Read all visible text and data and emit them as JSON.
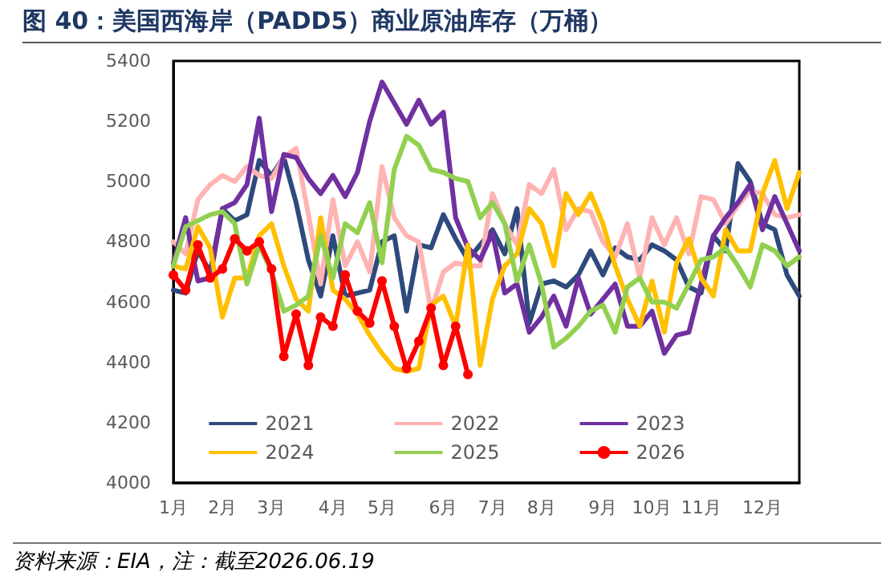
{
  "chart_data": {
    "type": "line",
    "title": "图 40：美国西海岸（PADD5）商业原油库存（万桶）",
    "annotations": [
      "资料来源：EIA，注：截至2026.06.19"
    ],
    "categories": [
      "1月",
      null,
      null,
      null,
      "2月",
      null,
      null,
      null,
      "3月",
      null,
      null,
      null,
      null,
      "4月",
      null,
      null,
      null,
      "5月",
      null,
      null,
      null,
      null,
      "6月",
      null,
      null,
      null,
      "7月",
      null,
      null,
      null,
      "8月",
      null,
      null,
      null,
      null,
      "9月",
      null,
      null,
      null,
      "10月",
      null,
      null,
      null,
      "11月",
      null,
      null,
      null,
      null,
      "12月",
      null,
      null,
      null
    ],
    "series": [
      {
        "name": "2021",
        "color": "#2e4a7d",
        "marker": "none",
        "values": [
          4640,
          4630,
          4770,
          4700,
          4910,
          4870,
          4890,
          5070,
          5020,
          5080,
          4930,
          4740,
          4620,
          4820,
          4620,
          4630,
          4640,
          4800,
          4820,
          4570,
          4790,
          4780,
          4890,
          4810,
          4740,
          4790,
          4840,
          4760,
          4910,
          4530,
          4660,
          4670,
          4650,
          4690,
          4770,
          4690,
          4780,
          4750,
          4740,
          4790,
          4770,
          4740,
          4650,
          4630,
          4820,
          4770,
          5060,
          5000,
          4860,
          4840,
          4690,
          4620
        ]
      },
      {
        "name": "2022",
        "color": "#ffb3b3",
        "marker": "none",
        "values": [
          4800,
          4760,
          4940,
          4990,
          5020,
          5000,
          5050,
          5020,
          5010,
          5080,
          5110,
          4890,
          4660,
          4940,
          4720,
          4800,
          4700,
          5050,
          4880,
          4820,
          4800,
          4570,
          4700,
          4730,
          4720,
          4720,
          4960,
          4860,
          4790,
          4990,
          4960,
          5040,
          4840,
          4910,
          4900,
          4800,
          4750,
          4860,
          4680,
          4880,
          4790,
          4880,
          4760,
          4950,
          4940,
          4860,
          4920,
          4970,
          4960,
          4890,
          4880,
          4890
        ]
      },
      {
        "name": "2023",
        "color": "#7030a0",
        "marker": "none",
        "values": [
          4730,
          4880,
          4670,
          4680,
          4910,
          4930,
          4990,
          5210,
          4900,
          5090,
          5080,
          5010,
          4960,
          5020,
          4950,
          5030,
          5200,
          5330,
          5260,
          5190,
          5270,
          5190,
          5230,
          4880,
          4780,
          4740,
          4830,
          4630,
          4660,
          4500,
          4550,
          4620,
          4520,
          4680,
          4560,
          4610,
          4660,
          4520,
          4520,
          4570,
          4430,
          4490,
          4500,
          4660,
          4820,
          4880,
          4930,
          4990,
          4840,
          4950,
          4860,
          4770
        ]
      },
      {
        "name": "2024",
        "color": "#ffc000",
        "marker": "none",
        "values": [
          4720,
          4710,
          4850,
          4780,
          4550,
          4680,
          4680,
          4820,
          4860,
          4720,
          4610,
          4570,
          4880,
          4640,
          4610,
          4560,
          4490,
          4430,
          4380,
          4370,
          4380,
          4590,
          4620,
          4520,
          4790,
          4390,
          4610,
          4720,
          4760,
          4910,
          4860,
          4720,
          4960,
          4890,
          4960,
          4860,
          4720,
          4610,
          4520,
          4670,
          4500,
          4730,
          4810,
          4680,
          4620,
          4840,
          4770,
          4770,
          4960,
          5070,
          4910,
          5030
        ]
      },
      {
        "name": "2025",
        "color": "#92d050",
        "marker": "none",
        "values": [
          4720,
          4850,
          4870,
          4890,
          4900,
          4860,
          4660,
          4790,
          4700,
          4570,
          4590,
          4620,
          4820,
          4680,
          4860,
          4830,
          4930,
          4730,
          5040,
          5150,
          5120,
          5040,
          5030,
          5010,
          5000,
          4880,
          4930,
          4860,
          4670,
          4790,
          4660,
          4450,
          4480,
          4520,
          4570,
          4590,
          4500,
          4650,
          4680,
          4600,
          4600,
          4580,
          4660,
          4740,
          4750,
          4780,
          4720,
          4650,
          4790,
          4770,
          4720,
          4750
        ]
      },
      {
        "name": "2026",
        "color": "#ff0000",
        "marker": "circle",
        "values": [
          4690,
          4640,
          4790,
          4680,
          4710,
          4810,
          4770,
          4800,
          4710,
          4420,
          4560,
          4390,
          4550,
          4520,
          4690,
          4570,
          4530,
          4670,
          4520,
          4380,
          4470,
          4580,
          4390,
          4520,
          4360,
          null,
          null,
          null,
          null,
          null,
          null,
          null,
          null,
          null,
          null,
          null,
          null,
          null,
          null,
          null,
          null,
          null,
          null,
          null,
          null,
          null,
          null,
          null,
          null,
          null,
          null,
          null
        ]
      }
    ],
    "ylim": [
      4000,
      5400
    ],
    "yticks": [
      4000,
      4200,
      4400,
      4600,
      4800,
      5000,
      5200,
      5400
    ],
    "grid": false,
    "legend": "bottom",
    "line_style": "solid"
  }
}
